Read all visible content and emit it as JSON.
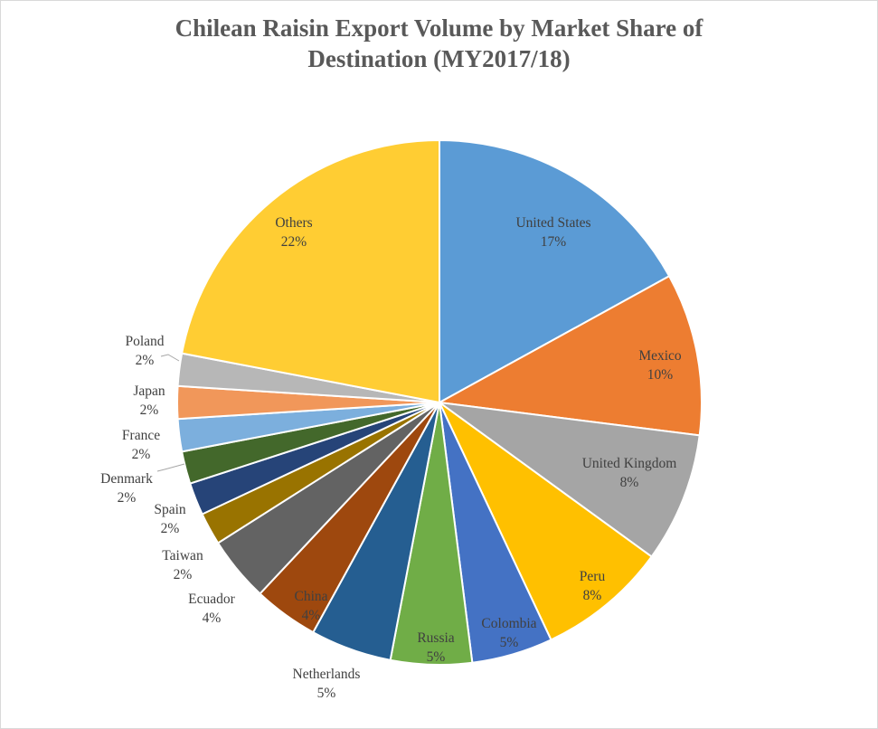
{
  "chart_data": {
    "type": "pie",
    "title_lines": [
      "Chilean Raisin Export Volume by Market Share of",
      "Destination (MY2017/18)"
    ],
    "slices": [
      {
        "label": "United States",
        "value": 17,
        "value_label": "17%",
        "color": "#5b9bd5",
        "text_color": "#404040"
      },
      {
        "label": "Mexico",
        "value": 10,
        "value_label": "10%",
        "color": "#ed7d31",
        "text_color": "#404040"
      },
      {
        "label": "United Kingdom",
        "value": 8,
        "value_label": "8%",
        "color": "#a5a5a5",
        "text_color": "#404040"
      },
      {
        "label": "Peru",
        "value": 8,
        "value_label": "8%",
        "color": "#ffc000",
        "text_color": "#404040"
      },
      {
        "label": "Colombia",
        "value": 5,
        "value_label": "5%",
        "color": "#4472c4",
        "text_color": "#404040"
      },
      {
        "label": "Russia",
        "value": 5,
        "value_label": "5%",
        "color": "#70ad47",
        "text_color": "#404040"
      },
      {
        "label": "Netherlands",
        "value": 5,
        "value_label": "5%",
        "color": "#255e91",
        "text_color": "#404040"
      },
      {
        "label": "China",
        "value": 4,
        "value_label": "4%",
        "color": "#9e480e",
        "text_color": "#404040"
      },
      {
        "label": "Ecuador",
        "value": 4,
        "value_label": "4%",
        "color": "#636363",
        "text_color": "#404040"
      },
      {
        "label": "Taiwan",
        "value": 2,
        "value_label": "2%",
        "color": "#997300",
        "text_color": "#404040"
      },
      {
        "label": "Spain",
        "value": 2,
        "value_label": "2%",
        "color": "#264478",
        "text_color": "#404040"
      },
      {
        "label": "Denmark",
        "value": 2,
        "value_label": "2%",
        "color": "#43682b",
        "text_color": "#404040"
      },
      {
        "label": "France",
        "value": 2,
        "value_label": "2%",
        "color": "#7cafdd",
        "text_color": "#404040"
      },
      {
        "label": "Japan",
        "value": 2,
        "value_label": "2%",
        "color": "#f1975a",
        "text_color": "#404040"
      },
      {
        "label": "Poland",
        "value": 2,
        "value_label": "2%",
        "color": "#b7b7b7",
        "text_color": "#404040"
      },
      {
        "label": "Others",
        "value": 22,
        "value_label": "22%",
        "color": "#ffcd33",
        "text_color": "#404040"
      }
    ]
  }
}
